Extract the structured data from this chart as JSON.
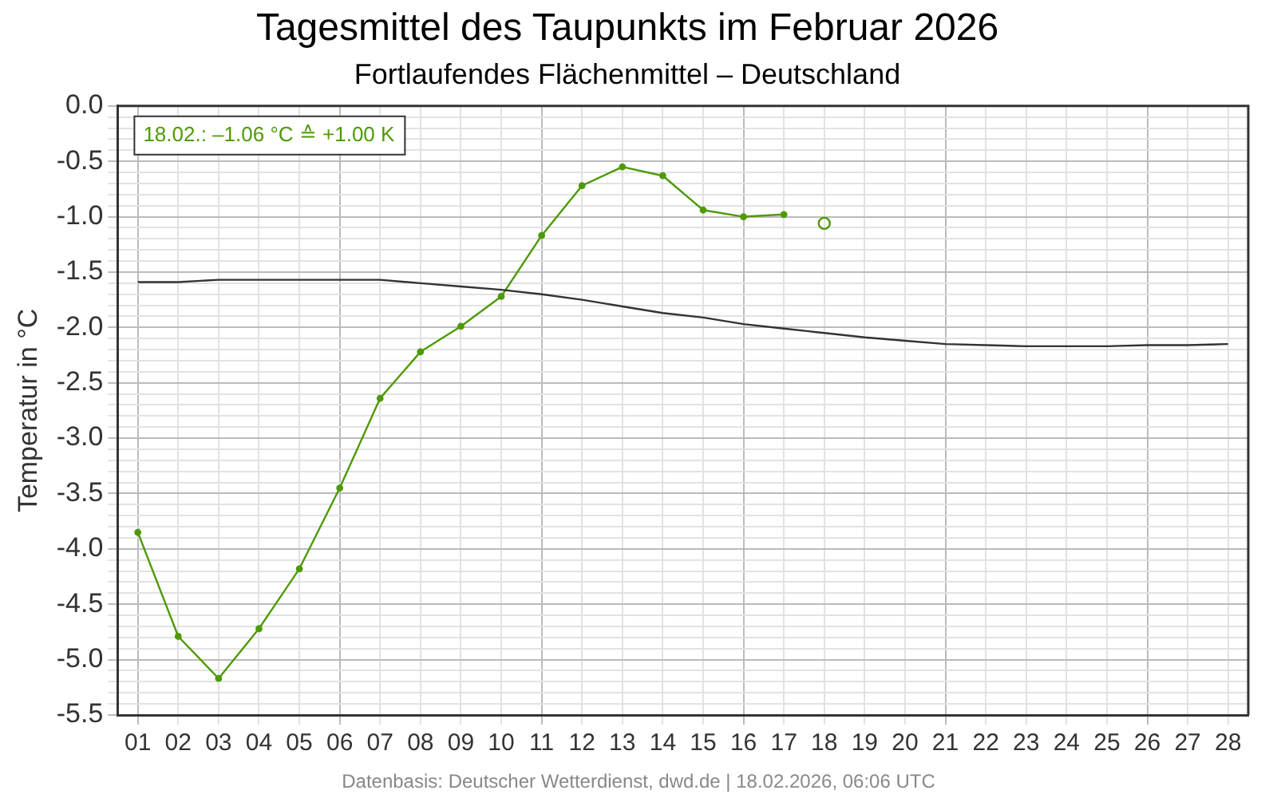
{
  "chart_data": {
    "type": "line",
    "title": "Tagesmittel des Taupunkts im Februar 2026",
    "subtitle": "Fortlaufendes Flächenmittel – Deutschland",
    "ylabel": "Temperatur in °C",
    "categories": [
      "01",
      "02",
      "03",
      "04",
      "05",
      "06",
      "07",
      "08",
      "09",
      "10",
      "11",
      "12",
      "13",
      "14",
      "15",
      "16",
      "17",
      "18",
      "19",
      "20",
      "21",
      "22",
      "23",
      "24",
      "25",
      "26",
      "27",
      "28"
    ],
    "series": [
      {
        "color": "#333333",
        "marker": "none",
        "values": [
          -1.59,
          -1.59,
          -1.57,
          -1.57,
          -1.57,
          -1.57,
          -1.57,
          -1.6,
          -1.63,
          -1.66,
          -1.7,
          -1.75,
          -1.81,
          -1.87,
          -1.91,
          -1.97,
          -2.01,
          -2.05,
          -2.09,
          -2.12,
          -2.15,
          -2.16,
          -2.17,
          -2.17,
          -2.17,
          -2.16,
          -2.16,
          -2.15
        ]
      },
      {
        "color": "#4e9a06",
        "marker": "circle",
        "values": [
          -3.85,
          -4.79,
          -5.17,
          -4.72,
          -4.18,
          -3.45,
          -2.64,
          -2.22,
          -1.99,
          -1.72,
          -1.17,
          -0.72,
          -0.55,
          -0.63,
          -0.94,
          -1.0,
          -0.98,
          null,
          null,
          null,
          null,
          null,
          null,
          null,
          null,
          null,
          null,
          null
        ]
      },
      {
        "type": "scatter",
        "color": "#4e9a06",
        "marker": "circle",
        "values": [
          null,
          null,
          null,
          null,
          null,
          null,
          null,
          null,
          null,
          null,
          null,
          null,
          null,
          null,
          null,
          null,
          null,
          -1.06,
          null,
          null,
          null,
          null,
          null,
          null,
          null,
          null,
          null,
          null
        ]
      }
    ],
    "ylim": [
      -5.5,
      0
    ],
    "yticks": [
      {
        "value": 0,
        "label": "0.0"
      },
      {
        "value": -0.1,
        "label": null
      },
      {
        "value": -0.2,
        "label": null
      },
      {
        "value": -0.3,
        "label": null
      },
      {
        "value": -0.4,
        "label": null
      },
      -0.5,
      {
        "value": -0.6,
        "label": null
      },
      {
        "value": -0.7,
        "label": null
      },
      {
        "value": -0.8,
        "label": null
      },
      {
        "value": -0.9,
        "label": null
      },
      {
        "value": -1,
        "label": "-1.0"
      },
      {
        "value": -1.1,
        "label": null
      },
      {
        "value": -1.2,
        "label": null
      },
      {
        "value": -1.3,
        "label": null
      },
      {
        "value": -1.4,
        "label": null
      },
      -1.5,
      {
        "value": -1.6,
        "label": null
      },
      {
        "value": -1.7,
        "label": null
      },
      {
        "value": -1.8,
        "label": null
      },
      {
        "value": -1.9,
        "label": null
      },
      {
        "value": -2,
        "label": "-2.0"
      },
      {
        "value": -2.1,
        "label": null
      },
      {
        "value": -2.2,
        "label": null
      },
      {
        "value": -2.3,
        "label": null
      },
      {
        "value": -2.4,
        "label": null
      },
      -2.5,
      {
        "value": -2.6,
        "label": null
      },
      {
        "value": -2.7,
        "label": null
      },
      {
        "value": -2.8,
        "label": null
      },
      {
        "value": -2.9,
        "label": null
      },
      {
        "value": -3,
        "label": "-3.0"
      },
      {
        "value": -3.1,
        "label": null
      },
      {
        "value": -3.2,
        "label": null
      },
      {
        "value": -3.3,
        "label": null
      },
      {
        "value": -3.4,
        "label": null
      },
      -3.5,
      {
        "value": -3.6,
        "label": null
      },
      {
        "value": -3.7,
        "label": null
      },
      {
        "value": -3.8,
        "label": null
      },
      {
        "value": -3.9,
        "label": null
      },
      {
        "value": -4,
        "label": "-4.0"
      },
      {
        "value": -4.1,
        "label": null
      },
      {
        "value": -4.2,
        "label": null
      },
      {
        "value": -4.3,
        "label": null
      },
      {
        "value": -4.4,
        "label": null
      },
      -4.5,
      {
        "value": -4.6,
        "label": null
      },
      {
        "value": -4.7,
        "label": null
      },
      {
        "value": -4.8,
        "label": null
      },
      {
        "value": -4.9,
        "label": null
      },
      {
        "value": -5,
        "label": "-5.0"
      },
      {
        "value": -5.1,
        "label": null
      },
      {
        "value": -5.2,
        "label": null
      },
      {
        "value": -5.3,
        "label": null
      },
      {
        "value": -5.4,
        "label": null
      },
      -5.5
    ],
    "grid": true,
    "legend": false,
    "annotations": [
      "18.02.: –1.06 °C ≙ +1.00 K",
      "Datenbasis: Deutscher Wetterdienst, dwd.de | 18.02.2026, 06:06 UTC"
    ]
  }
}
